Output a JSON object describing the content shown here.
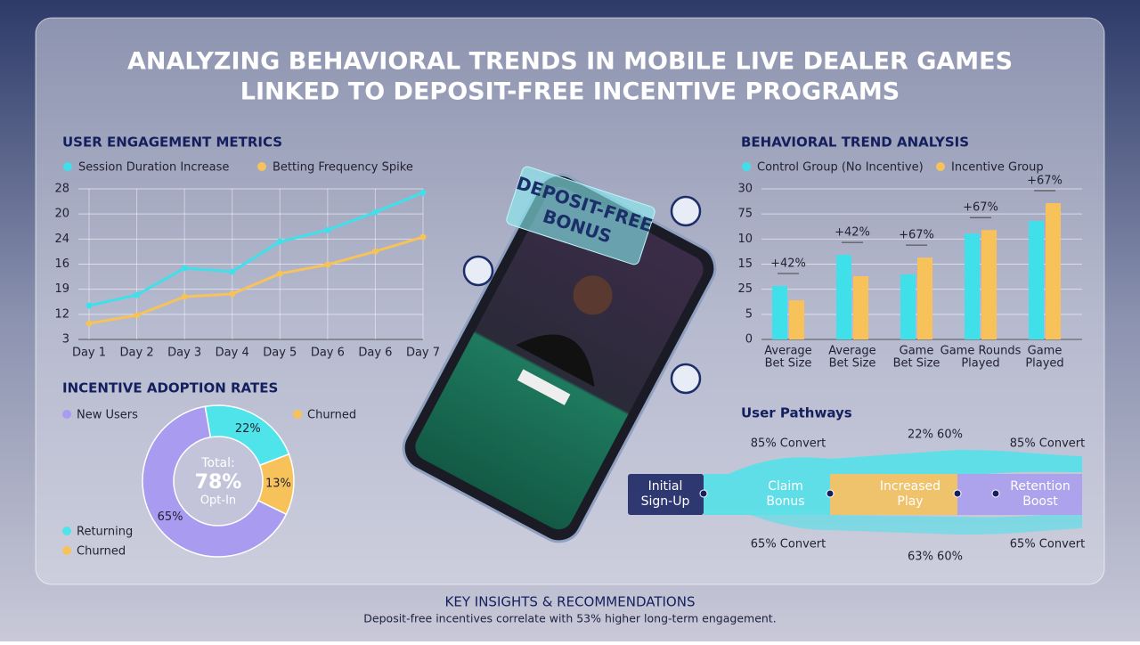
{
  "title": [
    "ANALYZING BEHAVIORAL TRENDS IN MOBILE LIVE DEALER GAMES",
    "LINKED TO DEPOSIT-FREE INCENTIVE PROGRAMS"
  ],
  "chart_data": [
    {
      "type": "line",
      "title": "USER ENGAGEMENT METRICS",
      "categories": [
        "Day 1",
        "Day 2",
        "Day 3",
        "Day 4",
        "Day 5",
        "Day 6",
        "Day 6",
        "Day 7"
      ],
      "series": [
        {
          "name": "Session Duration Increase",
          "color": "#3fe0ea",
          "values": [
            1.35,
            1.77,
            2.84,
            2.7,
            3.9,
            4.36,
            5.07,
            5.85
          ]
        },
        {
          "name": "Betting Frequency Spike",
          "color": "#f7c25a",
          "values": [
            0.64,
            0.96,
            1.7,
            1.81,
            2.62,
            2.98,
            3.51,
            4.08
          ]
        }
      ],
      "ylim": [
        0,
        6
      ],
      "yticks": [
        {
          "value": 6,
          "label": "28"
        },
        {
          "value": 5,
          "label": "20"
        },
        {
          "value": 4,
          "label": "24"
        },
        {
          "value": 3,
          "label": "16"
        },
        {
          "value": 2,
          "label": "19"
        },
        {
          "value": 1,
          "label": "12"
        },
        {
          "value": 0,
          "label": "3"
        }
      ],
      "grid": true
    },
    {
      "type": "pie",
      "donut": true,
      "title": "INCENTIVE ADOPTION RATES",
      "categories": [
        "Returning",
        "Churned",
        "New Users"
      ],
      "values": [
        22,
        13,
        65
      ],
      "value_labels": [
        "22%",
        "13%",
        "65%"
      ],
      "colors": [
        "#4fe3ea",
        "#f7c25a",
        "#a99cf0"
      ],
      "legend": [
        {
          "name": "New Users",
          "color": "#a99cf0"
        },
        {
          "name": "Churned",
          "color": "#f7c25a"
        },
        {
          "name": "Returning",
          "color": "#4fe3ea"
        },
        {
          "name": "Churned",
          "color": "#f7c25a"
        }
      ],
      "center_text": [
        "Total:",
        "78%",
        "Opt-In"
      ]
    },
    {
      "type": "bar",
      "title": "BEHAVIORAL TREND ANALYSIS",
      "categories": [
        [
          "Average",
          "Bet Size"
        ],
        [
          "Average",
          "Bet Size"
        ],
        [
          "Game",
          "Bet Size"
        ],
        [
          "Game Rounds",
          "Played"
        ],
        [
          "Game",
          "Played"
        ]
      ],
      "series": [
        {
          "name": "Control Group (No Incentive)",
          "color": "#3fe0ea",
          "values": [
            2.13,
            3.37,
            2.59,
            4.22,
            4.72
          ]
        },
        {
          "name": "Incentive Group",
          "color": "#f7c25a",
          "values": [
            1.56,
            2.52,
            3.26,
            4.36,
            5.43
          ]
        }
      ],
      "annotations": [
        "+42%",
        "+42%",
        "+67%",
        "+67%",
        "+67%"
      ],
      "ylim": [
        0,
        6
      ],
      "yticks": [
        {
          "value": 6,
          "label": "30"
        },
        {
          "value": 5,
          "label": "75"
        },
        {
          "value": 4,
          "label": "10"
        },
        {
          "value": 3,
          "label": "15"
        },
        {
          "value": 2,
          "label": "25"
        },
        {
          "value": 1,
          "label": "5"
        },
        {
          "value": 0,
          "label": "0"
        }
      ],
      "grid": true
    }
  ],
  "phone": {
    "sign": [
      "DEPOSIT-FREE",
      "BONUS"
    ]
  },
  "pathways": {
    "title": "User Pathways",
    "nodes": [
      [
        "Initial",
        "Sign-Up"
      ],
      [
        "Claim",
        "Bonus"
      ],
      [
        "Increased",
        "Play"
      ],
      [
        "Retention",
        "Boost"
      ]
    ],
    "labels": [
      "85% Convert",
      "22% 60%",
      "85% Convert",
      "65% Convert",
      "63% 60%",
      "65% Convert"
    ]
  },
  "footer": {
    "title": "KEY INSIGHTS & RECOMMENDATIONS",
    "text": "Deposit-free incentives correlate with 53% higher long-term engagement."
  }
}
